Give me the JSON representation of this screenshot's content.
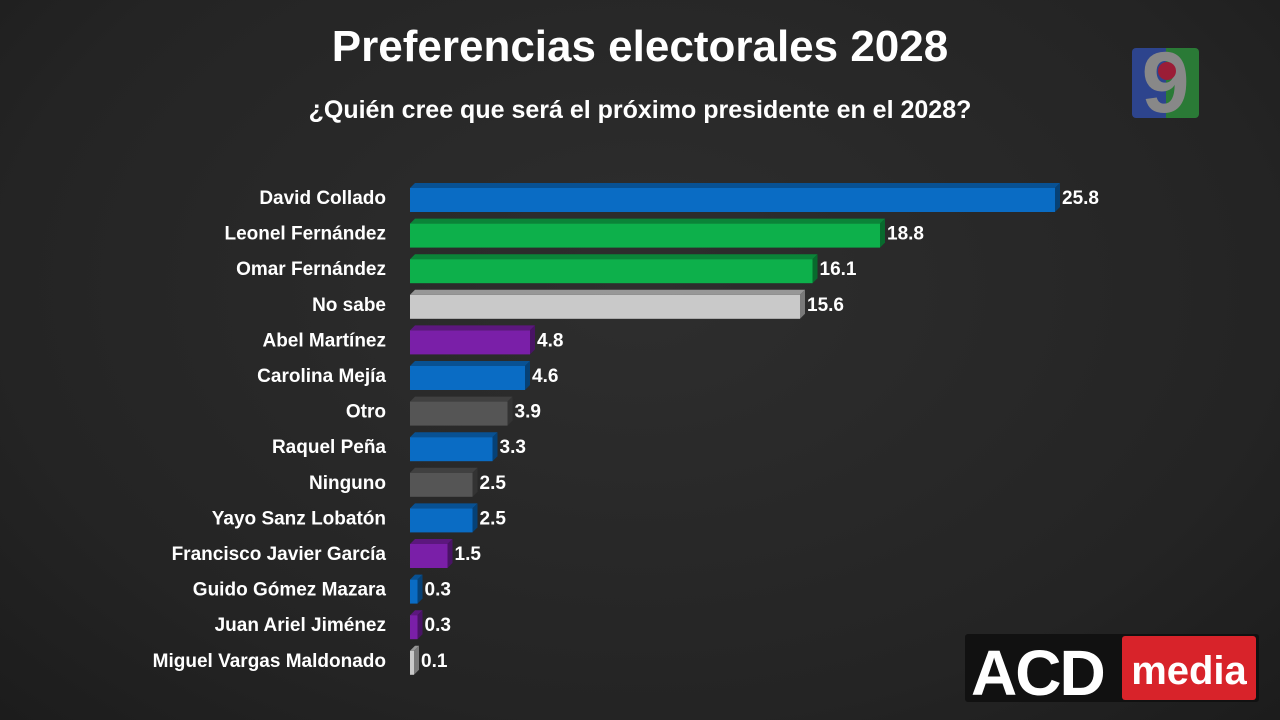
{
  "title": "Preferencias electorales 2028",
  "subtitle": "¿Quién cree que será el próximo presidente en el 2028?",
  "logos": {
    "channel": "9",
    "brand_a": "ACD",
    "brand_b": "media"
  },
  "colors": {
    "blue": "#0a6cc4",
    "green": "#0db04b",
    "light_gray": "#c9c9c9",
    "purple": "#7a1fa8",
    "dark_gray": "#555555"
  },
  "chart_data": {
    "type": "bar",
    "orientation": "horizontal",
    "title": "Preferencias electorales 2028",
    "subtitle": "¿Quién cree que será el próximo presidente en el 2028?",
    "xlabel": "",
    "ylabel": "",
    "grid": false,
    "categories": [
      "David Collado",
      "Leonel Fernández",
      "Omar Fernández",
      "No sabe",
      "Abel Martínez",
      "Carolina Mejía",
      "Otro",
      "Raquel Peña",
      "Ninguno",
      "Yayo Sanz Lobatón",
      "Francisco Javier García",
      "Guido Gómez Mazara",
      "Juan Ariel Jiménez",
      "Miguel Vargas Maldonado"
    ],
    "values": [
      25.8,
      18.8,
      16.1,
      15.6,
      4.8,
      4.6,
      3.9,
      3.3,
      2.5,
      2.5,
      1.5,
      0.3,
      0.3,
      0.1
    ],
    "labels": [
      "25.8",
      "18.8",
      "16.1",
      "15.6",
      "4.8",
      "4.6",
      "3.9",
      "3.3",
      "2.5",
      "2.5",
      "1.5",
      "0.3",
      "0.3",
      "0.1"
    ],
    "bar_colors": [
      "#0a6cc4",
      "#0db04b",
      "#0db04b",
      "#c9c9c9",
      "#7a1fa8",
      "#0a6cc4",
      "#555555",
      "#0a6cc4",
      "#555555",
      "#0a6cc4",
      "#7a1fa8",
      "#0a6cc4",
      "#7a1fa8",
      "#c9c9c9"
    ]
  }
}
